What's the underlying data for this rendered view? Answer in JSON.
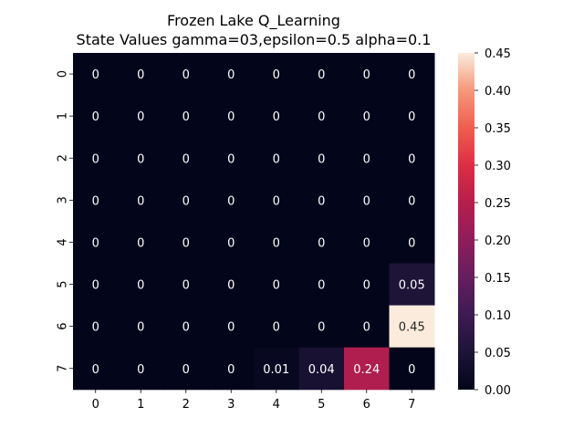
{
  "chart_data": {
    "type": "heatmap",
    "title": "Frozen Lake Q_Learning",
    "subtitle": "State Values gamma=03,epsilon=0.5 alpha=0.1",
    "xlabel": "",
    "ylabel": "",
    "x_ticks": [
      "0",
      "1",
      "2",
      "3",
      "4",
      "5",
      "6",
      "7"
    ],
    "y_ticks": [
      "0",
      "1",
      "2",
      "3",
      "4",
      "5",
      "6",
      "7"
    ],
    "values": [
      [
        0,
        0,
        0,
        0,
        0,
        0,
        0,
        0
      ],
      [
        0,
        0,
        0,
        0,
        0,
        0,
        0,
        0
      ],
      [
        0,
        0,
        0,
        0,
        0,
        0,
        0,
        0
      ],
      [
        0,
        0,
        0,
        0,
        0,
        0,
        0,
        0
      ],
      [
        0,
        0,
        0,
        0,
        0,
        0,
        0,
        0
      ],
      [
        0,
        0,
        0,
        0,
        0,
        0,
        0,
        0.05
      ],
      [
        0,
        0,
        0,
        0,
        0,
        0,
        0,
        0.45
      ],
      [
        0,
        0,
        0,
        0,
        0.01,
        0.04,
        0.24,
        0
      ]
    ],
    "annotations": [
      [
        "0",
        "0",
        "0",
        "0",
        "0",
        "0",
        "0",
        "0"
      ],
      [
        "0",
        "0",
        "0",
        "0",
        "0",
        "0",
        "0",
        "0"
      ],
      [
        "0",
        "0",
        "0",
        "0",
        "0",
        "0",
        "0",
        "0"
      ],
      [
        "0",
        "0",
        "0",
        "0",
        "0",
        "0",
        "0",
        "0"
      ],
      [
        "0",
        "0",
        "0",
        "0",
        "0",
        "0",
        "0",
        "0"
      ],
      [
        "0",
        "0",
        "0",
        "0",
        "0",
        "0",
        "0",
        "0.05"
      ],
      [
        "0",
        "0",
        "0",
        "0",
        "0",
        "0",
        "0",
        "0.45"
      ],
      [
        "0",
        "0",
        "0",
        "0",
        "0.01",
        "0.04",
        "0.24",
        "0"
      ]
    ],
    "colorbar": {
      "range": [
        0,
        0.45
      ],
      "ticks": [
        "0.00",
        "0.05",
        "0.10",
        "0.15",
        "0.20",
        "0.25",
        "0.30",
        "0.35",
        "0.40",
        "0.45"
      ],
      "colormap": "rocket"
    },
    "grid": false
  }
}
